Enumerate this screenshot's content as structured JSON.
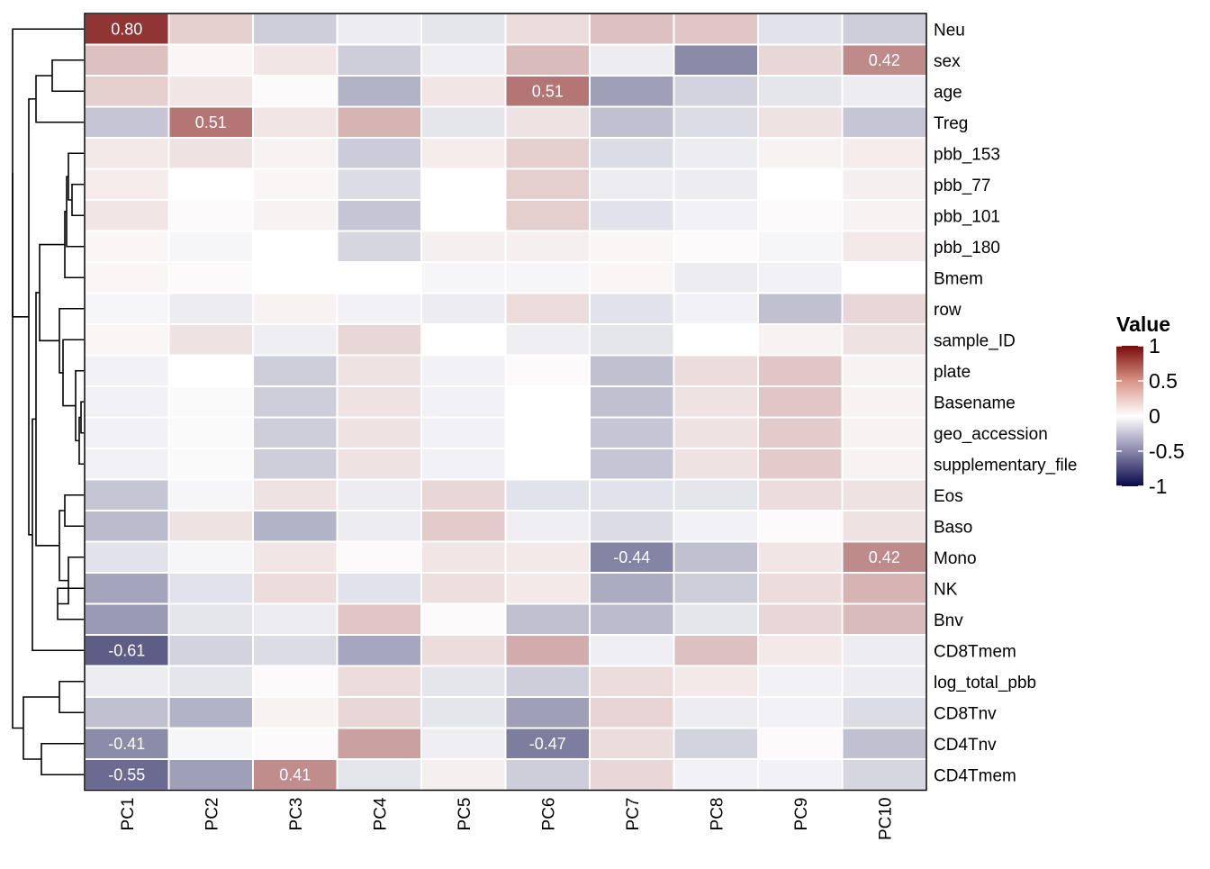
{
  "chart_data": {
    "type": "heatmap",
    "title": "",
    "xlabel": "",
    "ylabel": "",
    "columns": [
      "PC1",
      "PC2",
      "PC3",
      "PC4",
      "PC5",
      "PC6",
      "PC7",
      "PC8",
      "PC9",
      "PC10"
    ],
    "rows": [
      "Neu",
      "sex",
      "age",
      "Treg",
      "pbb_153",
      "pbb_77",
      "pbb_101",
      "pbb_180",
      "Bmem",
      "row",
      "sample_ID",
      "plate",
      "Basename",
      "geo_accession",
      "supplementary_file",
      "Eos",
      "Baso",
      "Mono",
      "NK",
      "Bnv",
      "CD8Tmem",
      "log_total_pbb",
      "CD8Tnv",
      "CD4Tnv",
      "CD4Tmem"
    ],
    "values": [
      [
        0.8,
        0.15,
        -0.15,
        -0.05,
        -0.07,
        0.1,
        0.2,
        0.18,
        -0.08,
        -0.15
      ],
      [
        0.2,
        0.02,
        0.07,
        -0.15,
        -0.04,
        0.22,
        -0.05,
        -0.42,
        0.12,
        0.42
      ],
      [
        0.15,
        0.07,
        0.01,
        -0.25,
        0.07,
        0.51,
        -0.33,
        -0.13,
        -0.07,
        -0.05
      ],
      [
        -0.18,
        0.51,
        0.07,
        0.25,
        -0.07,
        0.08,
        -0.2,
        -0.1,
        0.08,
        -0.18
      ],
      [
        0.06,
        0.08,
        0.03,
        -0.16,
        0.05,
        0.15,
        -0.1,
        -0.05,
        0.03,
        0.05
      ],
      [
        0.05,
        0.0,
        0.02,
        -0.1,
        0.0,
        0.15,
        -0.05,
        -0.05,
        0.0,
        0.04
      ],
      [
        0.07,
        0.01,
        0.03,
        -0.18,
        0.0,
        0.15,
        -0.08,
        -0.03,
        0.01,
        0.03
      ],
      [
        0.02,
        -0.02,
        0.0,
        -0.12,
        0.04,
        0.04,
        0.02,
        0.01,
        -0.02,
        0.06
      ],
      [
        0.02,
        0.01,
        0.0,
        0.0,
        -0.02,
        -0.02,
        0.02,
        -0.05,
        -0.03,
        0.0
      ],
      [
        -0.02,
        -0.05,
        0.03,
        -0.03,
        -0.05,
        0.1,
        -0.08,
        -0.03,
        -0.2,
        0.12
      ],
      [
        0.02,
        0.08,
        -0.04,
        0.12,
        0.0,
        -0.04,
        -0.07,
        0.0,
        0.03,
        0.08
      ],
      [
        -0.03,
        0.0,
        -0.15,
        0.08,
        -0.03,
        0.01,
        -0.2,
        0.1,
        0.18,
        0.03
      ],
      [
        -0.03,
        -0.01,
        -0.15,
        0.08,
        -0.03,
        0.0,
        -0.2,
        0.08,
        0.18,
        0.03
      ],
      [
        -0.03,
        -0.01,
        -0.15,
        0.08,
        -0.03,
        0.0,
        -0.18,
        0.08,
        0.16,
        0.03
      ],
      [
        -0.03,
        -0.01,
        -0.15,
        0.08,
        -0.03,
        0.0,
        -0.18,
        0.08,
        0.16,
        0.03
      ],
      [
        -0.18,
        -0.02,
        0.08,
        -0.05,
        0.12,
        -0.08,
        -0.08,
        -0.07,
        0.1,
        0.08
      ],
      [
        -0.22,
        0.08,
        -0.25,
        -0.05,
        0.16,
        -0.04,
        -0.1,
        -0.03,
        0.01,
        0.08
      ],
      [
        -0.08,
        -0.02,
        0.07,
        0.01,
        0.07,
        0.06,
        -0.44,
        -0.2,
        0.07,
        0.42
      ],
      [
        -0.31,
        -0.08,
        0.1,
        -0.08,
        0.09,
        0.06,
        -0.28,
        -0.15,
        0.1,
        0.25
      ],
      [
        -0.35,
        -0.07,
        -0.05,
        0.18,
        0.01,
        -0.2,
        -0.22,
        -0.07,
        0.12,
        0.22
      ],
      [
        -0.61,
        -0.13,
        -0.1,
        -0.3,
        0.1,
        0.28,
        -0.04,
        0.2,
        0.06,
        -0.05
      ],
      [
        -0.05,
        -0.07,
        0.01,
        0.1,
        -0.07,
        -0.15,
        0.1,
        0.06,
        -0.03,
        -0.05
      ],
      [
        -0.2,
        -0.25,
        0.03,
        0.12,
        -0.07,
        -0.33,
        0.13,
        -0.05,
        -0.03,
        -0.1
      ],
      [
        -0.41,
        -0.02,
        0.01,
        0.33,
        -0.04,
        -0.47,
        0.1,
        -0.13,
        0.01,
        -0.2
      ],
      [
        -0.55,
        -0.33,
        0.41,
        -0.07,
        0.04,
        -0.15,
        0.12,
        -0.03,
        -0.03,
        -0.12
      ]
    ],
    "cell_labels": [
      {
        "row": 0,
        "col": 0,
        "text": "0.80"
      },
      {
        "row": 1,
        "col": 9,
        "text": "0.42"
      },
      {
        "row": 2,
        "col": 5,
        "text": "0.51"
      },
      {
        "row": 3,
        "col": 1,
        "text": "0.51"
      },
      {
        "row": 17,
        "col": 6,
        "text": "-0.44"
      },
      {
        "row": 17,
        "col": 9,
        "text": "0.42"
      },
      {
        "row": 20,
        "col": 0,
        "text": "-0.61"
      },
      {
        "row": 23,
        "col": 0,
        "text": "-0.41"
      },
      {
        "row": 23,
        "col": 5,
        "text": "-0.47"
      },
      {
        "row": 24,
        "col": 0,
        "text": "-0.55"
      },
      {
        "row": 24,
        "col": 2,
        "text": "0.41"
      }
    ],
    "color_scale": {
      "min": -1,
      "max": 1,
      "low_color": "#08084A",
      "mid_color": "#FFFFFF",
      "high_color": "#7A0A0A"
    },
    "legend": {
      "title": "Value",
      "placement": "right",
      "ticks": [
        "1",
        "0.5",
        "0",
        "-0.5",
        "-1"
      ],
      "tick_values": [
        1,
        0.5,
        0,
        -0.5,
        -1
      ]
    },
    "row_dendrogram": true
  }
}
